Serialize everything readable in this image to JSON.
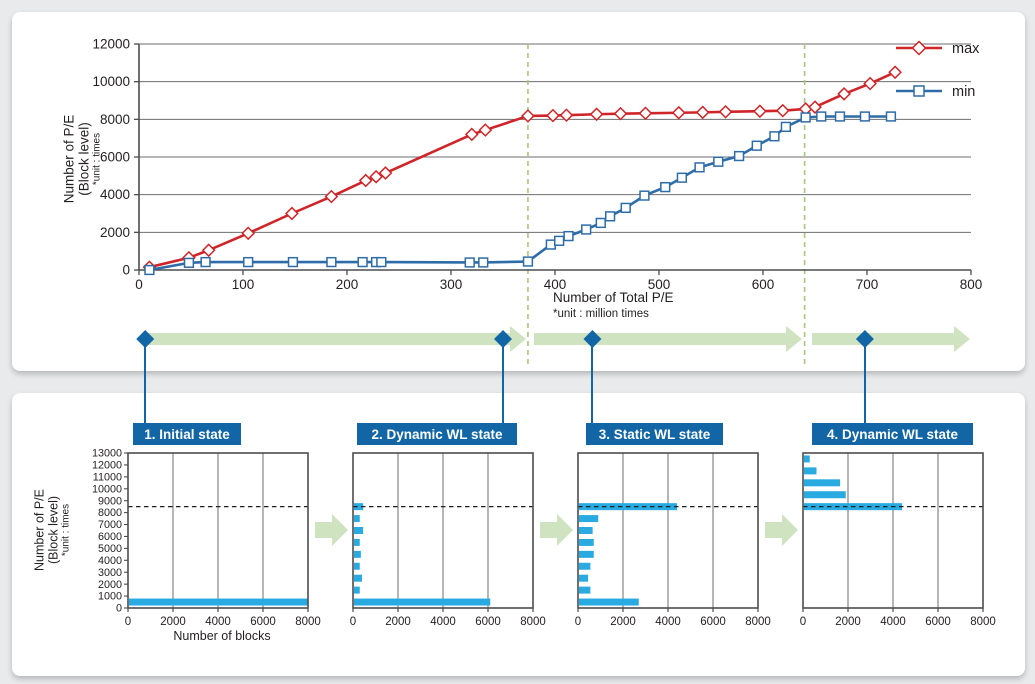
{
  "colors": {
    "max_red": "#cf2428",
    "min_blue": "#2e6ca8",
    "bar_cyan": "#29abe2",
    "header_blue": "#1266a5",
    "arrow_green": "#cfe3c0",
    "phase_dash_green": "#a6c87c",
    "grid_gray": "#6d6e71",
    "axis_gray": "#4c4d4f",
    "text_dark": "#231f20"
  },
  "chart_data": {
    "main": {
      "type": "line",
      "xlabel": "Number of Total P/E",
      "xlabel_unit": "*unit : million times",
      "ylabel_line1": "Number of P/E",
      "ylabel_line2": "(Block level)",
      "ylabel_unit": "*unit : times",
      "xlim": [
        0,
        800
      ],
      "ylim": [
        0,
        12000
      ],
      "xticks": [
        0,
        100,
        200,
        300,
        400,
        500,
        600,
        700,
        800
      ],
      "yticks": [
        0,
        2000,
        4000,
        6000,
        8000,
        10000,
        12000
      ],
      "grid": "horizontal",
      "legend_position": "top-right",
      "phase_boundaries_x": [
        374,
        640
      ],
      "timeline_marker_x": [
        6,
        350,
        436,
        698
      ],
      "series": [
        {
          "name": "max",
          "marker": "diamond",
          "color": "#cf2428",
          "points": [
            [
              10,
              150
            ],
            [
              48,
              650
            ],
            [
              67,
              1050
            ],
            [
              105,
              1950
            ],
            [
              147,
              3000
            ],
            [
              185,
              3900
            ],
            [
              218,
              4750
            ],
            [
              228,
              4950
            ],
            [
              237,
              5150
            ],
            [
              320,
              7200
            ],
            [
              333,
              7430
            ],
            [
              374,
              8180
            ],
            [
              398,
              8200
            ],
            [
              411,
              8220
            ],
            [
              440,
              8270
            ],
            [
              463,
              8300
            ],
            [
              487,
              8320
            ],
            [
              519,
              8350
            ],
            [
              542,
              8370
            ],
            [
              564,
              8400
            ],
            [
              597,
              8430
            ],
            [
              619,
              8460
            ],
            [
              641,
              8550
            ],
            [
              650,
              8650
            ],
            [
              678,
              9350
            ],
            [
              703,
              9900
            ],
            [
              727,
              10500
            ]
          ]
        },
        {
          "name": "min",
          "marker": "square",
          "color": "#2e6ca8",
          "points": [
            [
              10,
              0
            ],
            [
              48,
              380
            ],
            [
              64,
              420
            ],
            [
              105,
              420
            ],
            [
              148,
              420
            ],
            [
              185,
              420
            ],
            [
              215,
              420
            ],
            [
              228,
              420
            ],
            [
              233,
              420
            ],
            [
              318,
              400
            ],
            [
              331,
              400
            ],
            [
              374,
              450
            ],
            [
              396,
              1350
            ],
            [
              404,
              1550
            ],
            [
              413,
              1800
            ],
            [
              430,
              2150
            ],
            [
              444,
              2500
            ],
            [
              453,
              2850
            ],
            [
              468,
              3300
            ],
            [
              486,
              3950
            ],
            [
              506,
              4400
            ],
            [
              522,
              4900
            ],
            [
              539,
              5450
            ],
            [
              557,
              5750
            ],
            [
              577,
              6050
            ],
            [
              594,
              6600
            ],
            [
              611,
              7100
            ],
            [
              622,
              7600
            ],
            [
              641,
              8100
            ],
            [
              656,
              8150
            ],
            [
              674,
              8150
            ],
            [
              698,
              8150
            ],
            [
              723,
              8150
            ]
          ]
        }
      ]
    },
    "states": [
      {
        "label": "1. Initial state",
        "type": "bar",
        "orientation": "horizontal",
        "levels": [
          500
        ],
        "values": [
          8000
        ]
      },
      {
        "label": "2. Dynamic WL state",
        "type": "bar",
        "orientation": "horizontal",
        "levels": [
          8500,
          7500,
          6500,
          5500,
          4500,
          3500,
          2500,
          1500,
          500
        ],
        "values": [
          450,
          300,
          450,
          300,
          350,
          300,
          400,
          300,
          6100
        ]
      },
      {
        "label": "3. Static WL state",
        "type": "bar",
        "orientation": "horizontal",
        "levels": [
          8500,
          7500,
          6500,
          5500,
          4500,
          3500,
          2500,
          1500,
          500
        ],
        "values": [
          4400,
          900,
          650,
          700,
          700,
          550,
          450,
          550,
          2700
        ]
      },
      {
        "label": "4. Dynamic WL state",
        "type": "bar",
        "orientation": "horizontal",
        "levels": [
          12500,
          11500,
          10500,
          9500,
          8500
        ],
        "values": [
          300,
          600,
          1650,
          1900,
          4400
        ]
      }
    ],
    "mini_axis": {
      "xlabel": "Number of blocks",
      "ylabel_line1": "Number of P/E",
      "ylabel_line2": "(Block level)",
      "ylabel_unit": "*unit : times",
      "xlim": [
        0,
        8000
      ],
      "ylim": [
        0,
        13000
      ],
      "xticks": [
        0,
        2000,
        4000,
        6000,
        8000
      ],
      "yticks": [
        0,
        1000,
        2000,
        3000,
        4000,
        5000,
        6000,
        7000,
        8000,
        9000,
        10000,
        11000,
        12000,
        13000
      ],
      "threshold": 8500
    }
  }
}
